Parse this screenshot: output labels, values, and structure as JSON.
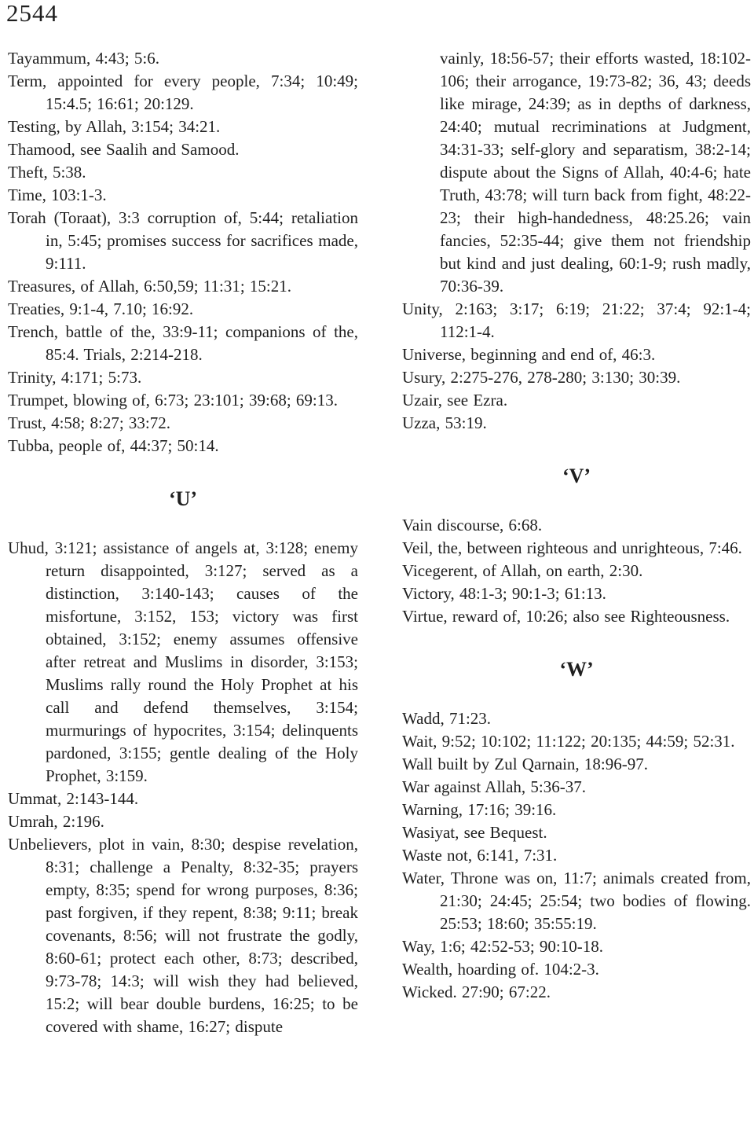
{
  "page_number": "2544",
  "columns": {
    "left": [
      {
        "type": "entry",
        "text": "Tayammum, 4:43; 5:6."
      },
      {
        "type": "entry",
        "text": "Term, appointed for every people, 7:34; 10:49; 15:4.5; 16:61; 20:129."
      },
      {
        "type": "entry",
        "text": "Testing, by Allah, 3:154; 34:21."
      },
      {
        "type": "entry",
        "text": "Thamood, see Saalih and Samood."
      },
      {
        "type": "entry",
        "text": "Theft, 5:38."
      },
      {
        "type": "entry",
        "text": "Time, 103:1-3."
      },
      {
        "type": "entry",
        "text": "Torah (Toraat), 3:3 corruption of, 5:44; retaliation in, 5:45; promises success for sacrifices made, 9:111."
      },
      {
        "type": "entry",
        "text": "Treasures, of Allah, 6:50,59; 11:31; 15:21."
      },
      {
        "type": "entry",
        "text": "Treaties, 9:1-4, 7.10; 16:92."
      },
      {
        "type": "entry",
        "text": "Trench, battle of the, 33:9-11; companions of the, 85:4. Trials, 2:214-218."
      },
      {
        "type": "entry",
        "text": "Trinity, 4:171; 5:73."
      },
      {
        "type": "entry",
        "text": "Trumpet, blowing of, 6:73; 23:101; 39:68; 69:13."
      },
      {
        "type": "entry",
        "text": "Trust, 4:58; 8:27; 33:72."
      },
      {
        "type": "entry",
        "text": "Tubba, people of, 44:37; 50:14."
      },
      {
        "type": "section",
        "text": "‘U’"
      },
      {
        "type": "entry",
        "text": "Uhud, 3:121; assistance of angels at, 3:128; enemy return disappointed, 3:127; served as a distinction, 3:140-143; causes of the misfortune, 3:152, 153; victory was first obtained, 3:152; enemy assumes offensive after retreat and Muslims in disorder, 3:153; Muslims rally round the Holy Prophet at his call and defend themselves, 3:154; murmurings of hypocrites, 3:154; delinquents pardoned, 3:155; gentle dealing of the Holy Prophet, 3:159."
      },
      {
        "type": "entry",
        "text": "Ummat, 2:143-144."
      },
      {
        "type": "entry",
        "text": "Umrah, 2:196."
      },
      {
        "type": "entry",
        "text": "Unbelievers, plot in vain, 8:30; despise revelation, 8:31; challenge a Penalty, 8:32-35; prayers empty, 8:35; spend for wrong purposes, 8:36; past forgiven, if they repent, 8:38; 9:11; break covenants, 8:56; will not frustrate the godly, 8:60-61; protect each other, 8:73; described, 9:73-78; 14:3; will wish they had believed, 15:2; will bear double burdens, 16:25; to be covered with shame, 16:27; dispute"
      }
    ],
    "right": [
      {
        "type": "continuation",
        "text": "vainly, 18:56-57; their efforts wasted, 18:102-106; their arrogance, 19:73-82; 36, 43; deeds like mirage, 24:39; as in depths of darkness, 24:40; mutual recriminations at Judgment, 34:31-33; self-glory and separatism, 38:2-14; dispute about the Signs of Allah, 40:4-6; hate Truth, 43:78; will turn back from fight, 48:22-23; their high-handedness, 48:25.26; vain fancies, 52:35-44; give them not friendship but kind and just dealing, 60:1-9; rush madly, 70:36-39."
      },
      {
        "type": "entry",
        "text": "Unity, 2:163; 3:17; 6:19; 21:22; 37:4; 92:1-4; 112:1-4."
      },
      {
        "type": "entry",
        "text": "Universe, beginning and end of, 46:3."
      },
      {
        "type": "entry",
        "text": "Usury, 2:275-276, 278-280; 3:130; 30:39."
      },
      {
        "type": "entry",
        "text": "Uzair, see Ezra."
      },
      {
        "type": "entry",
        "text": "Uzza, 53:19."
      },
      {
        "type": "section",
        "text": "‘V’"
      },
      {
        "type": "entry",
        "text": "Vain discourse, 6:68."
      },
      {
        "type": "entry",
        "text": "Veil, the, between righteous and unrighteous, 7:46."
      },
      {
        "type": "entry",
        "text": "Vicegerent, of Allah, on earth, 2:30."
      },
      {
        "type": "entry",
        "text": "Victory, 48:1-3; 90:1-3; 61:13."
      },
      {
        "type": "entry",
        "text": "Virtue, reward of, 10:26; also see Righteousness."
      },
      {
        "type": "section",
        "text": "‘W’"
      },
      {
        "type": "entry",
        "text": "Wadd, 71:23."
      },
      {
        "type": "entry",
        "text": "Wait, 9:52; 10:102; 11:122; 20:135; 44:59; 52:31."
      },
      {
        "type": "entry",
        "text": "Wall built by Zul Qarnain, 18:96-97."
      },
      {
        "type": "entry",
        "text": "War against Allah, 5:36-37."
      },
      {
        "type": "entry",
        "text": "Warning, 17:16; 39:16."
      },
      {
        "type": "entry",
        "text": "Wasiyat, see Bequest."
      },
      {
        "type": "entry",
        "text": "Waste not, 6:141, 7:31."
      },
      {
        "type": "entry",
        "text": "Water, Throne was on, 11:7; animals created from, 21:30; 24:45; 25:54; two bodies of flowing. 25:53; 18:60; 35:55:19."
      },
      {
        "type": "entry",
        "text": "Way, 1:6; 42:52-53; 90:10-18."
      },
      {
        "type": "entry",
        "text": "Wealth, hoarding of. 104:2-3."
      },
      {
        "type": "entry",
        "text": "Wicked. 27:90; 67:22."
      }
    ]
  }
}
